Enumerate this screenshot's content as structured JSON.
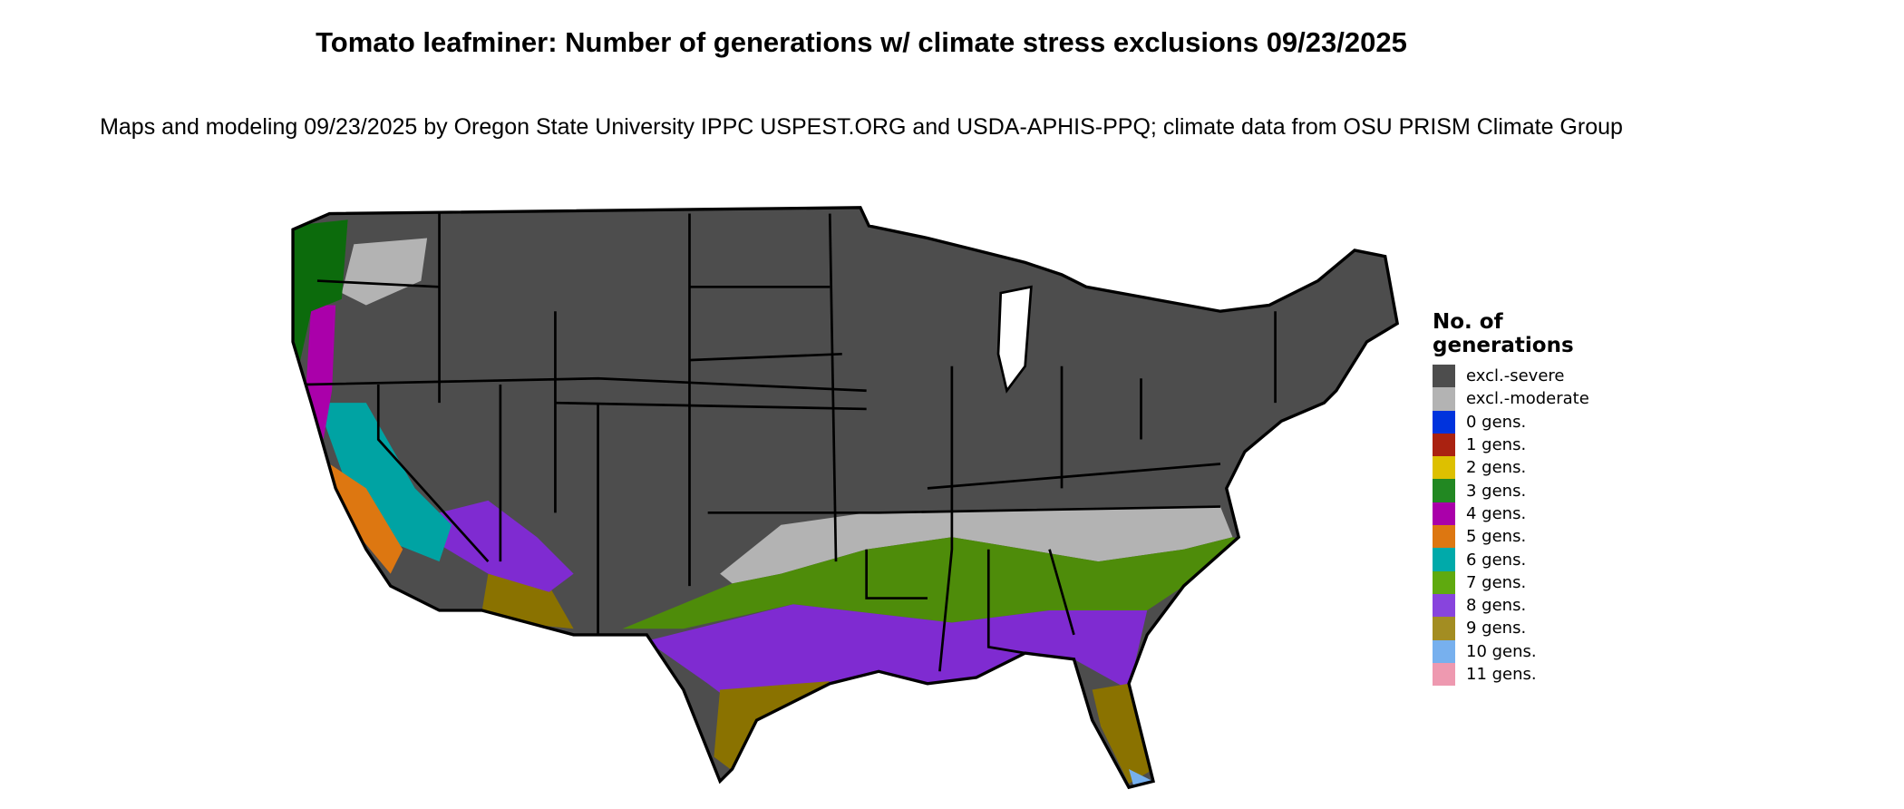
{
  "title": "Tomato leafminer: Number of generations w/ climate stress exclusions 09/23/2025",
  "subtitle": "Maps and modeling 09/23/2025 by Oregon State University IPPC USPEST.ORG and USDA-APHIS-PPQ; climate data from OSU PRISM Climate Group",
  "legend": {
    "title": "No. of generations",
    "items": [
      {
        "label": "excl.-severe",
        "color": "#4d4d4d"
      },
      {
        "label": "excl.-moderate",
        "color": "#b3b3b3"
      },
      {
        "label": "0 gens.",
        "color": "#0033dd"
      },
      {
        "label": "1 gens.",
        "color": "#aa2211"
      },
      {
        "label": "2 gens.",
        "color": "#ddc000"
      },
      {
        "label": "3 gens.",
        "color": "#228822"
      },
      {
        "label": "4 gens.",
        "color": "#aa00aa"
      },
      {
        "label": "5 gens.",
        "color": "#dd7711"
      },
      {
        "label": "6 gens.",
        "color": "#00aaaa"
      },
      {
        "label": "7 gens.",
        "color": "#5faa0f"
      },
      {
        "label": "8 gens.",
        "color": "#8844dd"
      },
      {
        "label": "9 gens.",
        "color": "#a38d22"
      },
      {
        "label": "10 gens.",
        "color": "#77b0ee"
      },
      {
        "label": "11 gens.",
        "color": "#ee99b0"
      }
    ]
  }
}
